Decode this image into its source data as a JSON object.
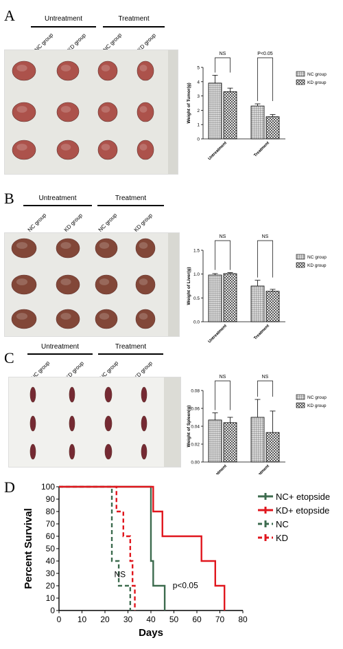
{
  "figure": {
    "panels": [
      {
        "letter": "A",
        "groups": [
          "Untreatment",
          "Treatment"
        ],
        "columns": [
          "NC group",
          "KD group",
          "NC group",
          "KD group"
        ]
      },
      {
        "letter": "B",
        "groups": [
          "Untreatment",
          "Treatment"
        ],
        "columns": [
          "NC group",
          "KD group",
          "NC group",
          "KD group"
        ]
      },
      {
        "letter": "C",
        "groups": [
          "Untreatment",
          "Treatment"
        ],
        "columns": [
          "NC group",
          "KD group",
          "NC group",
          "KD group"
        ]
      },
      {
        "letter": "D"
      }
    ],
    "colors": {
      "tumor": "#a8463f",
      "liver": "#7a3a2a",
      "spleen": "#6b1a24",
      "nc": "#3c6b4e",
      "kd": "#e0161d"
    }
  },
  "chart_data": [
    {
      "type": "bar",
      "categories": [
        "Untreatment",
        "Treatment"
      ],
      "series": [
        {
          "name": "NC group",
          "values": [
            3.9,
            2.3
          ],
          "errors": [
            0.55,
            0.15
          ],
          "pattern": "grid"
        },
        {
          "name": "KD group",
          "values": [
            3.3,
            1.55
          ],
          "errors": [
            0.25,
            0.15
          ],
          "pattern": "cross"
        }
      ],
      "ylabel": "Weight of Tumor(g)",
      "ylim": [
        0,
        5
      ],
      "yticks": [
        0,
        1,
        2,
        3,
        4,
        5
      ],
      "annotations": [
        "NS",
        "P<0.05"
      ]
    },
    {
      "type": "bar",
      "categories": [
        "Untreatment",
        "Treatment"
      ],
      "series": [
        {
          "name": "NC group",
          "values": [
            0.98,
            0.75
          ],
          "errors": [
            0.03,
            0.12
          ],
          "pattern": "grid"
        },
        {
          "name": "KD group",
          "values": [
            1.01,
            0.64
          ],
          "errors": [
            0.02,
            0.04
          ],
          "pattern": "cross"
        }
      ],
      "ylabel": "Weight of Liver(g)",
      "ylim": [
        0,
        1.5
      ],
      "yticks": [
        "0.0",
        "0.5",
        "1.0",
        "1.5"
      ],
      "annotations": [
        "NS",
        "NS"
      ]
    },
    {
      "type": "bar",
      "categories": [
        "Untreatment",
        "Treatment"
      ],
      "series": [
        {
          "name": "NC group",
          "values": [
            0.047,
            0.05
          ],
          "errors": [
            0.008,
            0.02
          ],
          "pattern": "grid"
        },
        {
          "name": "KD group",
          "values": [
            0.044,
            0.033
          ],
          "errors": [
            0.006,
            0.024
          ],
          "pattern": "cross"
        }
      ],
      "ylabel": "Weight of Spleen(g)",
      "ylim": [
        0,
        0.08
      ],
      "yticks": [
        "0.00",
        "0.02",
        "0.04",
        "0.06",
        "0.08"
      ],
      "annotations": [
        "NS",
        "NS"
      ]
    },
    {
      "type": "line",
      "step": true,
      "xlabel": "Days",
      "ylabel": "Percent Survival",
      "xlim": [
        0,
        80
      ],
      "ylim": [
        0,
        100
      ],
      "xticks": [
        0,
        10,
        20,
        30,
        40,
        50,
        60,
        70,
        80
      ],
      "yticks": [
        0,
        10,
        20,
        30,
        40,
        50,
        60,
        70,
        80,
        90,
        100
      ],
      "series": [
        {
          "name": "NC+ etopside",
          "color": "#3c6b4e",
          "dash": false,
          "x": [
            0,
            40,
            41,
            46
          ],
          "y": [
            100,
            40,
            20,
            0
          ]
        },
        {
          "name": "KD+ etopside",
          "color": "#e0161d",
          "dash": false,
          "x": [
            0,
            41,
            45,
            62,
            68,
            72
          ],
          "y": [
            100,
            80,
            60,
            40,
            20,
            0
          ]
        },
        {
          "name": "NC",
          "color": "#3c6b4e",
          "dash": true,
          "x": [
            0,
            23,
            26,
            28,
            31
          ],
          "y": [
            100,
            40,
            20,
            20,
            0
          ]
        },
        {
          "name": "KD",
          "color": "#e0161d",
          "dash": true,
          "x": [
            0,
            25,
            28,
            31,
            32,
            33
          ],
          "y": [
            100,
            80,
            60,
            40,
            20,
            0
          ]
        }
      ],
      "annotations": [
        "NS",
        "p<0.05"
      ]
    }
  ]
}
